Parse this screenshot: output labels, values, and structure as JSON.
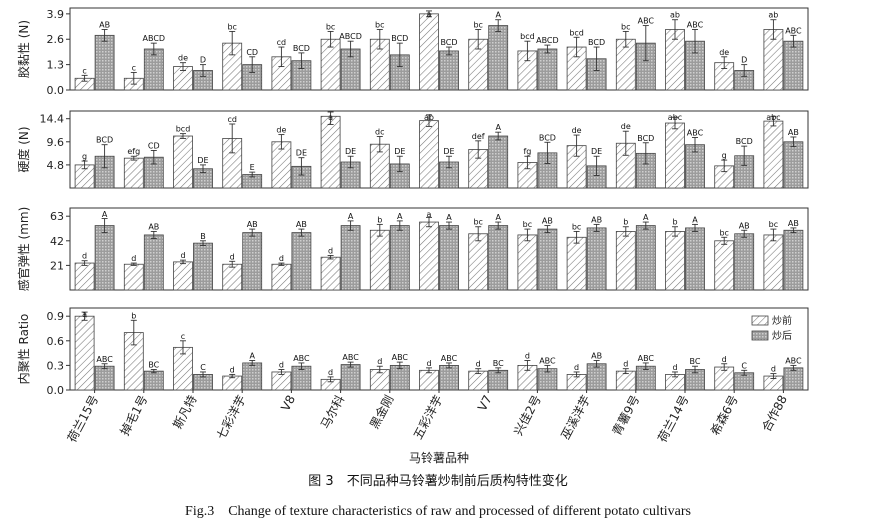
{
  "figure": {
    "caption_cn": "图 3　不同品种马铃薯炒制前后质构特性变化",
    "caption_en": "Fig.3　Change of texture characteristics of raw and processed of different potato cultivars"
  },
  "chart_data": {
    "type": "bar",
    "xlabel": "马铃薯品种",
    "categories": [
      "荷兰15号",
      "掉毛1号",
      "斯凡特",
      "七彩洋芋",
      "V8",
      "马尔科",
      "黑金刚",
      "五彩洋芋",
      "V7",
      "兴佳2号",
      "巫溪洋芋",
      "青薯9号",
      "荷兰14号",
      "希森6号",
      "合作88"
    ],
    "legend": {
      "entries": [
        "炒前",
        "炒后"
      ],
      "placement": "top-right",
      "panel": 3
    },
    "colors": {
      "raw": "#ffffff",
      "processed": "#a8a8a8",
      "stroke": "#444444"
    },
    "panels": [
      {
        "ylabel": "胶黏性 (N)",
        "ylim": [
          0,
          4.2
        ],
        "yticks": [
          0.0,
          1.3,
          2.6,
          3.9
        ],
        "series": [
          {
            "name": "炒前",
            "values": [
              0.6,
              0.6,
              1.2,
              2.4,
              1.7,
              2.6,
              2.6,
              3.9,
              2.6,
              2.0,
              2.2,
              2.6,
              3.1,
              1.4,
              3.1
            ],
            "errors": [
              0.15,
              0.3,
              0.2,
              0.6,
              0.5,
              0.4,
              0.5,
              0.15,
              0.5,
              0.5,
              0.5,
              0.4,
              0.5,
              0.3,
              0.5
            ],
            "labels": [
              "c",
              "c",
              "de",
              "bc",
              "cd",
              "bc",
              "bc",
              "a",
              "bc",
              "bcd",
              "bcd",
              "bc",
              "ab",
              "de",
              "ab"
            ]
          },
          {
            "name": "炒后",
            "values": [
              2.8,
              2.1,
              1.0,
              1.3,
              1.5,
              2.1,
              1.8,
              2.0,
              3.3,
              2.1,
              1.6,
              2.4,
              2.5,
              1.0,
              2.5
            ],
            "errors": [
              0.3,
              0.3,
              0.3,
              0.4,
              0.4,
              0.4,
              0.6,
              0.2,
              0.3,
              0.2,
              0.6,
              0.9,
              0.6,
              0.3,
              0.3
            ],
            "labels": [
              "AB",
              "ABCD",
              "D",
              "CD",
              "BCD",
              "ABCD",
              "BCD",
              "BCD",
              "A",
              "ABCD",
              "BCD",
              "ABC",
              "ABC",
              "D",
              "ABC"
            ]
          }
        ]
      },
      {
        "ylabel": "硬度 (N)",
        "ylim": [
          0,
          16
        ],
        "yticks": [
          4.8,
          9.6,
          14.4
        ],
        "series": [
          {
            "name": "炒前",
            "values": [
              4.8,
              6.2,
              10.8,
              10.3,
              9.6,
              14.9,
              9.1,
              14.0,
              8.0,
              5.3,
              8.8,
              9.3,
              13.5,
              4.6,
              13.9
            ],
            "errors": [
              0.8,
              0.4,
              0.5,
              3.0,
              1.5,
              1.7,
              1.6,
              1.2,
              1.8,
              1.3,
              2.2,
              2.5,
              1.2,
              1.2,
              1.0
            ],
            "labels": [
              "g",
              "efg",
              "bcd",
              "cd",
              "de",
              "a",
              "dc",
              "ab",
              "def",
              "fg",
              "de",
              "de",
              "abc",
              "g",
              "abc"
            ]
          },
          {
            "name": "炒后",
            "values": [
              6.6,
              6.4,
              4.0,
              2.8,
              4.5,
              5.4,
              5.0,
              5.4,
              10.8,
              7.3,
              4.6,
              7.2,
              9.0,
              6.7,
              9.6
            ],
            "errors": [
              2.4,
              1.4,
              0.8,
              0.5,
              1.8,
              1.2,
              1.6,
              1.2,
              0.8,
              2.2,
              2.0,
              2.2,
              1.5,
              2.0,
              1.0
            ],
            "labels": [
              "BCD",
              "CD",
              "DE",
              "E",
              "DE",
              "DE",
              "DE",
              "DE",
              "A",
              "BCD",
              "DE",
              "BCD",
              "ABC",
              "BCD",
              "AB"
            ]
          }
        ]
      },
      {
        "ylabel": "感官弹性 (mm)",
        "ylim": [
          0,
          70
        ],
        "yticks": [
          21,
          42,
          63
        ],
        "series": [
          {
            "name": "炒前",
            "values": [
              23,
              22,
              24,
              22,
              22,
              28,
              51,
              58,
              48,
              47,
              45,
              50,
              50,
              42,
              47
            ],
            "errors": [
              2,
              1,
              1.5,
              2.5,
              1,
              1.5,
              5,
              4,
              6,
              5,
              5,
              4,
              4,
              3,
              5
            ],
            "labels": [
              "d",
              "d",
              "d",
              "d",
              "d",
              "d",
              "b",
              "a",
              "bc",
              "bc",
              "bc",
              "b",
              "b",
              "bc",
              "bc"
            ]
          },
          {
            "name": "炒后",
            "values": [
              55,
              47,
              40,
              49,
              49,
              55,
              55,
              55,
              55,
              52,
              53,
              55,
              53,
              48,
              51
            ],
            "errors": [
              6,
              3,
              2,
              3,
              3,
              4,
              4,
              3,
              3,
              3,
              3,
              3,
              3,
              3,
              2
            ],
            "labels": [
              "A",
              "AB",
              "B",
              "AB",
              "AB",
              "A",
              "A",
              "A",
              "A",
              "AB",
              "AB",
              "A",
              "A",
              "AB",
              "AB"
            ]
          }
        ]
      },
      {
        "ylabel": "内聚性 Ratio",
        "ylim": [
          0,
          1.0
        ],
        "yticks": [
          0.0,
          0.3,
          0.6,
          0.9
        ],
        "series": [
          {
            "name": "炒前",
            "values": [
              0.9,
              0.7,
              0.52,
              0.17,
              0.22,
              0.13,
              0.25,
              0.24,
              0.23,
              0.3,
              0.19,
              0.23,
              0.19,
              0.28,
              0.17
            ],
            "errors": [
              0.05,
              0.15,
              0.08,
              0.02,
              0.03,
              0.03,
              0.04,
              0.03,
              0.03,
              0.06,
              0.03,
              0.03,
              0.03,
              0.04,
              0.03
            ],
            "labels": [
              "a",
              "b",
              "c",
              "d",
              "d",
              "d",
              "d",
              "d",
              "d",
              "d",
              "d",
              "d",
              "d",
              "d",
              "d"
            ]
          },
          {
            "name": "炒后",
            "values": [
              0.29,
              0.23,
              0.19,
              0.33,
              0.29,
              0.31,
              0.3,
              0.3,
              0.24,
              0.26,
              0.32,
              0.29,
              0.25,
              0.21,
              0.27
            ],
            "errors": [
              0.03,
              0.02,
              0.03,
              0.03,
              0.04,
              0.03,
              0.04,
              0.03,
              0.03,
              0.04,
              0.04,
              0.04,
              0.04,
              0.03,
              0.03
            ],
            "labels": [
              "ABC",
              "BC",
              "C",
              "A",
              "ABC",
              "ABC",
              "ABC",
              "ABC",
              "BC",
              "ABC",
              "AB",
              "ABC",
              "BC",
              "C",
              "ABC"
            ]
          }
        ]
      }
    ]
  }
}
